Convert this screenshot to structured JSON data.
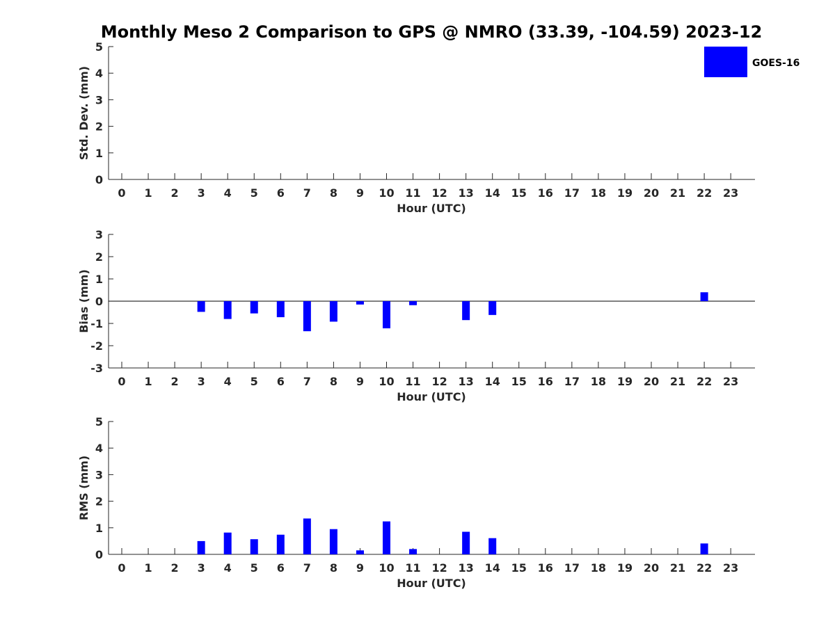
{
  "title": "Monthly Meso 2 Comparison to GPS @ NMRO (33.39, -104.59) 2023-12",
  "legend": {
    "label": "GOES-16",
    "color": "#0000ff",
    "placement": "top-right"
  },
  "chart_data": [
    {
      "type": "bar",
      "ylabel": "Std. Dev. (mm)",
      "xlabel": "Hour (UTC)",
      "ylim": [
        0,
        5
      ],
      "yticks": [
        0,
        1,
        2,
        3,
        4,
        5
      ],
      "xticks": [
        "0",
        "1",
        "2",
        "3",
        "4",
        "5",
        "6",
        "7",
        "8",
        "9",
        "10",
        "11",
        "12",
        "13",
        "14",
        "15",
        "16",
        "17",
        "18",
        "19",
        "20",
        "21",
        "22",
        "23"
      ],
      "series": [
        {
          "name": "GOES-16",
          "color": "#0000ff",
          "x": [],
          "values": []
        }
      ]
    },
    {
      "type": "bar",
      "ylabel": "Bias (mm)",
      "xlabel": "Hour (UTC)",
      "ylim": [
        -3,
        3
      ],
      "yticks": [
        -3,
        -2,
        -1,
        0,
        1,
        2,
        3
      ],
      "zero_line": true,
      "xticks": [
        "0",
        "1",
        "2",
        "3",
        "4",
        "5",
        "6",
        "7",
        "8",
        "9",
        "10",
        "11",
        "12",
        "13",
        "14",
        "15",
        "16",
        "17",
        "18",
        "19",
        "20",
        "21",
        "22",
        "23"
      ],
      "series": [
        {
          "name": "GOES-16",
          "color": "#0000ff",
          "x": [
            3,
            4,
            5,
            6,
            7,
            8,
            9,
            10,
            11,
            13,
            14,
            22
          ],
          "values": [
            -0.48,
            -0.8,
            -0.55,
            -0.72,
            -1.35,
            -0.92,
            -0.15,
            -1.22,
            -0.18,
            -0.85,
            -0.62,
            0.4
          ]
        }
      ]
    },
    {
      "type": "bar",
      "ylabel": "RMS (mm)",
      "xlabel": "Hour (UTC)",
      "ylim": [
        0,
        5
      ],
      "yticks": [
        0,
        1,
        2,
        3,
        4,
        5
      ],
      "xticks": [
        "0",
        "1",
        "2",
        "3",
        "4",
        "5",
        "6",
        "7",
        "8",
        "9",
        "10",
        "11",
        "12",
        "13",
        "14",
        "15",
        "16",
        "17",
        "18",
        "19",
        "20",
        "21",
        "22",
        "23"
      ],
      "series": [
        {
          "name": "GOES-16",
          "color": "#0000ff",
          "x": [
            3,
            4,
            5,
            6,
            7,
            8,
            9,
            10,
            11,
            13,
            14,
            22
          ],
          "values": [
            0.5,
            0.82,
            0.57,
            0.74,
            1.35,
            0.95,
            0.15,
            1.24,
            0.2,
            0.85,
            0.61,
            0.41
          ]
        }
      ]
    }
  ]
}
